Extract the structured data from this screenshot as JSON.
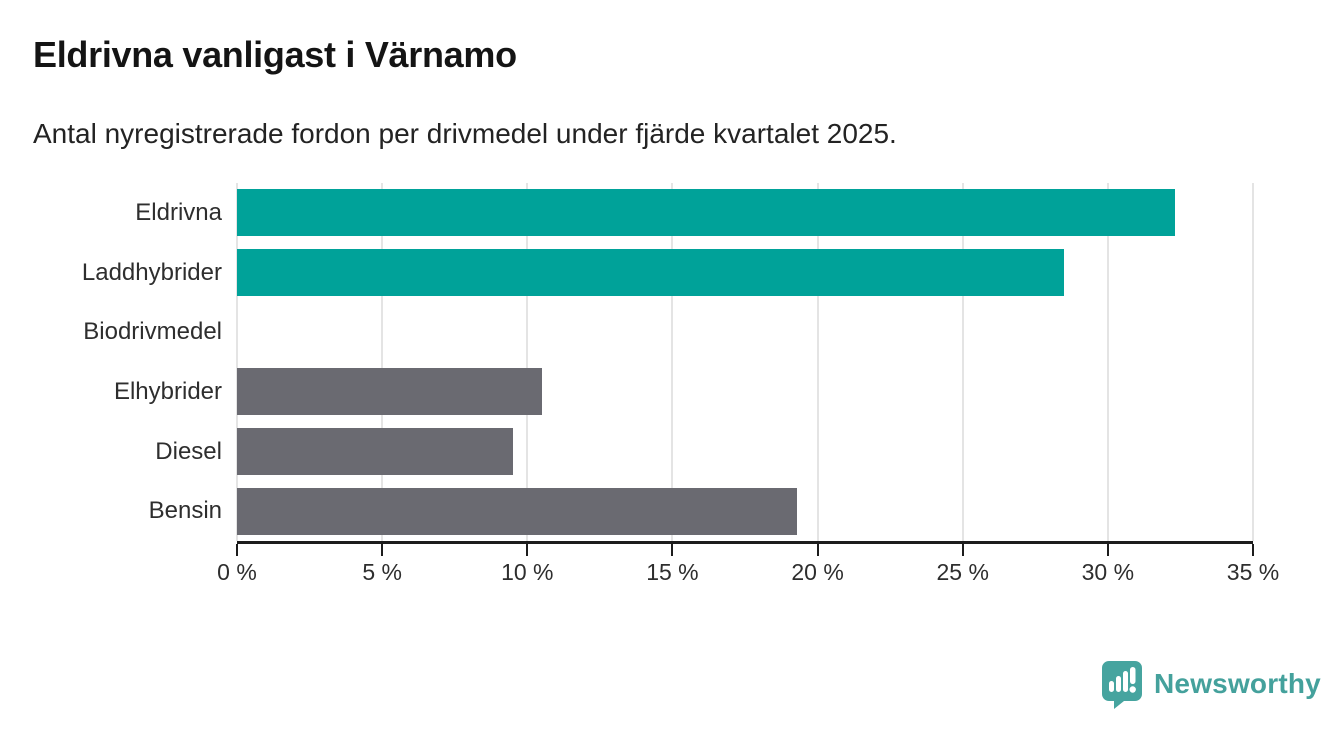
{
  "chart_data": {
    "type": "bar",
    "orientation": "horizontal",
    "title": "Eldrivna vanligast i Värnamo",
    "subtitle": "Antal nyregistrerade fordon per drivmedel under fjärde kvartalet 2025.",
    "categories": [
      "Eldrivna",
      "Laddhybrider",
      "Biodrivmedel",
      "Elhybrider",
      "Diesel",
      "Bensin"
    ],
    "values": [
      32.3,
      28.5,
      0,
      10.5,
      9.5,
      19.3
    ],
    "bar_colors": [
      "#00a299",
      "#00a299",
      "#6a6a71",
      "#6a6a71",
      "#6a6a71",
      "#6a6a71"
    ],
    "xlim": [
      0,
      35
    ],
    "x_tick_step": 5,
    "x_tick_labels": [
      "0 %",
      "5 %",
      "10 %",
      "15 %",
      "20 %",
      "25 %",
      "30 %",
      "35 %"
    ],
    "grid": "vertical-gridlines-on",
    "legend": "none",
    "xlabel": "",
    "ylabel": ""
  },
  "colors": {
    "accent_teal": "#00a299",
    "neutral_gray": "#6a6a71",
    "gridline": "#e4e4e4",
    "axis": "#1c1c1c",
    "text_dark": "#141414",
    "text_body": "#2e2e2e",
    "logo_teal": "#44a19c"
  },
  "logo": {
    "text": "Newsworthy"
  }
}
